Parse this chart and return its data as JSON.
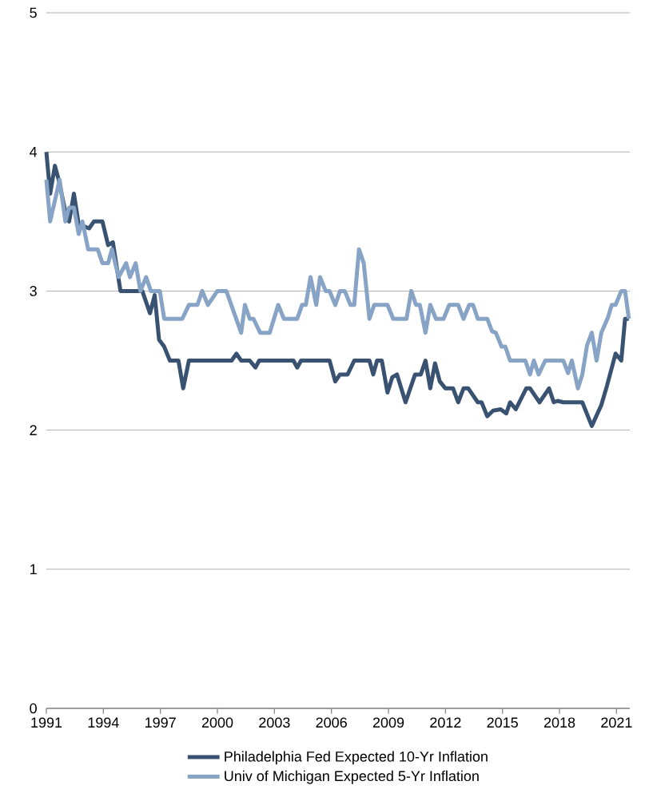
{
  "chart_data": {
    "type": "line",
    "xlim": [
      1991,
      2021.7
    ],
    "xticks": [
      1991,
      1994,
      1997,
      2000,
      2003,
      2006,
      2009,
      2012,
      2015,
      2018,
      2021
    ],
    "ylim": [
      0,
      5
    ],
    "yticks": [
      0,
      1,
      2,
      3,
      4,
      5
    ],
    "grid": "y",
    "legend": "bottom",
    "line_style": "solid",
    "marker": "none",
    "series": [
      {
        "name": "Philadelphia Fed Expected 10-Yr Inflation",
        "color": "#3a5272",
        "x": [
          1991.0,
          1991.2,
          1991.45,
          1991.65,
          1992.0,
          1992.2,
          1992.45,
          1992.7,
          1993.25,
          1993.5,
          1993.95,
          1994.25,
          1994.5,
          1994.9,
          1996.05,
          1996.45,
          1996.7,
          1996.93,
          1997.2,
          1997.5,
          1997.95,
          1998.2,
          1998.5,
          2000.75,
          2001.0,
          2001.25,
          2001.7,
          2002.0,
          2002.2,
          2004.0,
          2004.2,
          2004.4,
          2005.9,
          2006.2,
          2006.45,
          2006.85,
          2007.2,
          2008.0,
          2008.2,
          2008.4,
          2008.65,
          2008.95,
          2009.2,
          2009.45,
          2009.9,
          2010.4,
          2010.7,
          2010.95,
          2011.2,
          2011.45,
          2011.7,
          2012.0,
          2012.4,
          2012.67,
          2012.95,
          2013.2,
          2013.7,
          2013.9,
          2014.2,
          2014.5,
          2014.9,
          2015.2,
          2015.4,
          2015.7,
          2016.25,
          2016.45,
          2016.95,
          2017.45,
          2017.7,
          2017.9,
          2018.2,
          2019.2,
          2019.7,
          2020.2,
          2020.5,
          2020.95,
          2021.25,
          2021.45,
          2021.65
        ],
        "values": [
          4.0,
          3.7,
          3.9,
          3.8,
          3.57,
          3.5,
          3.7,
          3.48,
          3.45,
          3.5,
          3.5,
          3.33,
          3.35,
          3.0,
          3.0,
          2.84,
          2.97,
          2.65,
          2.6,
          2.5,
          2.5,
          2.3,
          2.5,
          2.5,
          2.55,
          2.5,
          2.5,
          2.45,
          2.5,
          2.5,
          2.45,
          2.5,
          2.5,
          2.35,
          2.4,
          2.4,
          2.5,
          2.5,
          2.4,
          2.5,
          2.5,
          2.27,
          2.38,
          2.4,
          2.2,
          2.4,
          2.4,
          2.5,
          2.3,
          2.48,
          2.35,
          2.3,
          2.3,
          2.2,
          2.3,
          2.3,
          2.2,
          2.2,
          2.1,
          2.14,
          2.15,
          2.12,
          2.2,
          2.15,
          2.3,
          2.3,
          2.2,
          2.3,
          2.2,
          2.21,
          2.2,
          2.2,
          2.03,
          2.18,
          2.32,
          2.55,
          2.5,
          2.8,
          2.8
        ]
      },
      {
        "name": "Univ of Michigan Expected 5-Yr Inflation",
        "color": "#87a3c5",
        "x": [
          1991.0,
          1991.2,
          1991.7,
          1992.0,
          1992.2,
          1992.45,
          1992.7,
          1992.9,
          1993.2,
          1993.7,
          1993.95,
          1994.25,
          1994.45,
          1994.8,
          1995.2,
          1995.4,
          1995.7,
          1995.95,
          1996.25,
          1996.5,
          1996.97,
          1997.2,
          1998.15,
          1998.5,
          1998.95,
          1999.2,
          1999.5,
          2000.0,
          2000.47,
          2001.25,
          2001.45,
          2001.7,
          2001.9,
          2002.25,
          2002.75,
          2003.2,
          2003.5,
          2004.2,
          2004.45,
          2004.65,
          2004.9,
          2005.2,
          2005.4,
          2005.7,
          2005.9,
          2006.2,
          2006.45,
          2006.7,
          2007.0,
          2007.2,
          2007.45,
          2007.7,
          2008.0,
          2008.25,
          2008.95,
          2009.25,
          2009.95,
          2010.2,
          2010.45,
          2010.65,
          2010.95,
          2011.2,
          2011.5,
          2011.9,
          2012.2,
          2012.67,
          2012.95,
          2013.25,
          2013.45,
          2013.7,
          2014.2,
          2014.45,
          2014.65,
          2014.95,
          2015.15,
          2015.4,
          2016.2,
          2016.45,
          2016.65,
          2016.9,
          2017.25,
          2018.2,
          2018.45,
          2018.65,
          2018.97,
          2019.2,
          2019.45,
          2019.7,
          2019.95,
          2020.2,
          2020.55,
          2020.75,
          2020.95,
          2021.25,
          2021.45,
          2021.65
        ],
        "values": [
          3.8,
          3.5,
          3.8,
          3.5,
          3.6,
          3.6,
          3.41,
          3.5,
          3.3,
          3.3,
          3.2,
          3.2,
          3.3,
          3.1,
          3.2,
          3.1,
          3.2,
          3.0,
          3.1,
          3.0,
          3.0,
          2.8,
          2.8,
          2.9,
          2.9,
          3.0,
          2.9,
          3.0,
          3.0,
          2.7,
          2.9,
          2.8,
          2.8,
          2.7,
          2.7,
          2.9,
          2.8,
          2.8,
          2.9,
          2.9,
          3.1,
          2.9,
          3.1,
          3.0,
          3.0,
          2.9,
          3.0,
          3.0,
          2.9,
          2.9,
          3.3,
          3.2,
          2.8,
          2.9,
          2.9,
          2.8,
          2.8,
          3.0,
          2.9,
          2.9,
          2.7,
          2.9,
          2.8,
          2.8,
          2.9,
          2.9,
          2.8,
          2.9,
          2.9,
          2.8,
          2.8,
          2.71,
          2.7,
          2.6,
          2.6,
          2.5,
          2.5,
          2.4,
          2.5,
          2.4,
          2.5,
          2.5,
          2.41,
          2.5,
          2.3,
          2.4,
          2.61,
          2.7,
          2.5,
          2.7,
          2.81,
          2.9,
          2.9,
          3.0,
          3.0,
          2.8
        ]
      }
    ]
  }
}
